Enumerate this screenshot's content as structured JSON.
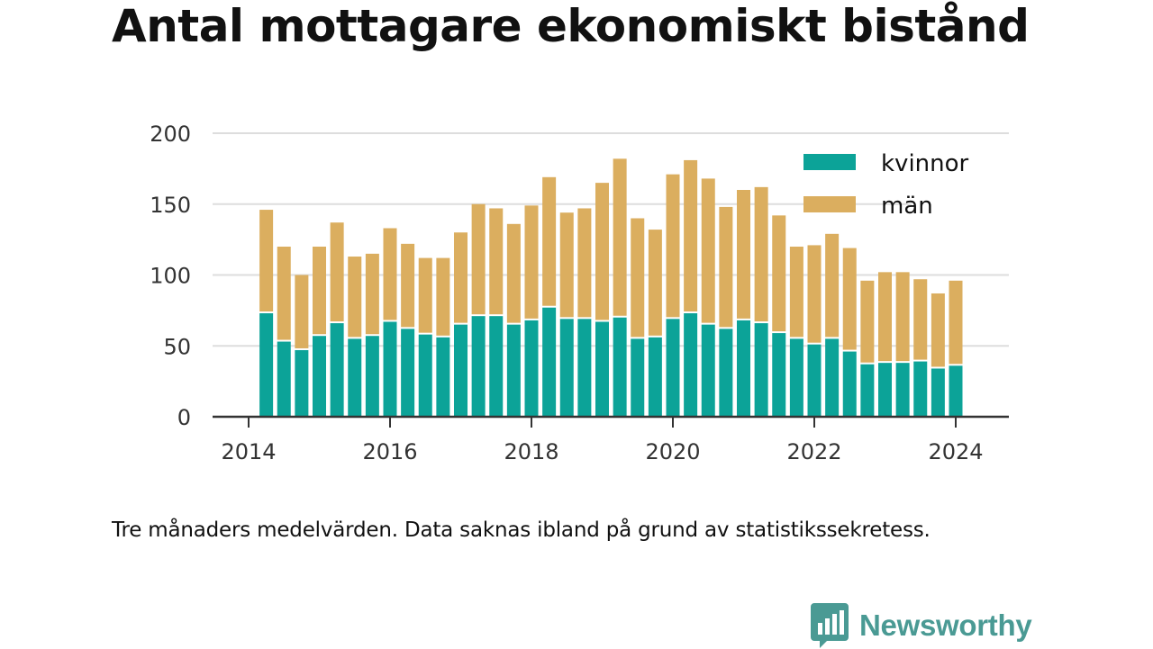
{
  "chart_data": {
    "type": "bar",
    "stacked": true,
    "title": "Antal mottagare ekonomiskt bistånd",
    "note": "Tre månaders medelvärden. Data saknas ibland på grund av statistikssekretess.",
    "x_ticks": [
      "2014",
      "2016",
      "2018",
      "2020",
      "2022",
      "2024"
    ],
    "y_ticks": [
      0,
      50,
      100,
      150,
      200
    ],
    "ylim": [
      0,
      200
    ],
    "xlim": [
      2014,
      2024.3
    ],
    "grid": true,
    "legend_position": "top-right",
    "x": [
      2014.25,
      2014.5,
      2014.75,
      2015.0,
      2015.25,
      2015.5,
      2015.75,
      2016.0,
      2016.25,
      2016.5,
      2016.75,
      2017.0,
      2017.25,
      2017.5,
      2017.75,
      2018.0,
      2018.25,
      2018.5,
      2018.75,
      2019.0,
      2019.25,
      2019.5,
      2019.75,
      2020.0,
      2020.25,
      2020.5,
      2020.75,
      2021.0,
      2021.25,
      2021.5,
      2021.75,
      2022.0,
      2022.25,
      2022.5,
      2022.75,
      2023.0,
      2023.25,
      2023.5,
      2023.75,
      2024.0
    ],
    "series": [
      {
        "name": "kvinnor",
        "color": "#0ca398",
        "values": [
          73,
          53,
          47,
          57,
          66,
          55,
          57,
          67,
          62,
          58,
          56,
          65,
          71,
          71,
          65,
          68,
          77,
          69,
          69,
          67,
          70,
          55,
          56,
          69,
          73,
          65,
          62,
          68,
          66,
          59,
          55,
          51,
          55,
          46,
          37,
          38,
          38,
          39,
          34,
          36
        ]
      },
      {
        "name": "män",
        "color": "#dbae5f",
        "values": [
          73,
          67,
          53,
          63,
          71,
          58,
          58,
          66,
          60,
          54,
          56,
          65,
          79,
          76,
          71,
          81,
          92,
          75,
          78,
          98,
          112,
          85,
          76,
          102,
          108,
          103,
          86,
          92,
          96,
          83,
          65,
          70,
          74,
          73,
          59,
          64,
          64,
          58,
          53,
          60
        ]
      }
    ]
  },
  "brand": {
    "name": "Newsworthy",
    "icon": "bar-chart-speech-bubble-icon",
    "color": "#4a9a94"
  },
  "colors": {
    "grid": "#dddddd",
    "axis": "#333333",
    "tick_text": "#333333"
  }
}
